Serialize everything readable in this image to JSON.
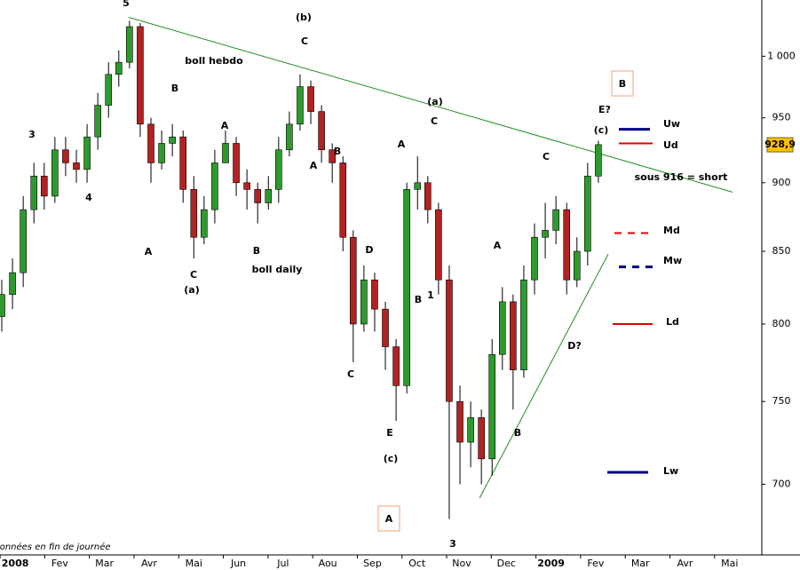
{
  "chart_data": {
    "type": "candlestick",
    "log": true,
    "xlim": [
      -0.34,
      16.72
    ],
    "ylim": [
      660,
      1048
    ],
    "xticks": [
      {
        "value": 0,
        "label": "2008"
      },
      {
        "value": 1,
        "label": "Fev"
      },
      {
        "value": 2,
        "label": "Mar"
      },
      {
        "value": 3,
        "label": "Avr"
      },
      {
        "value": 4,
        "label": "Mai"
      },
      {
        "value": 5,
        "label": "Jun"
      },
      {
        "value": 6,
        "label": "Jul"
      },
      {
        "value": 7,
        "label": "Aou"
      },
      {
        "value": 8,
        "label": "Sep"
      },
      {
        "value": 9,
        "label": "Oct"
      },
      {
        "value": 10,
        "label": "Nov"
      },
      {
        "value": 11,
        "label": "Dec"
      },
      {
        "value": 12,
        "label": "2009"
      },
      {
        "value": 13,
        "label": "Fev"
      },
      {
        "value": 14,
        "label": "Mar"
      },
      {
        "value": 15,
        "label": "Avr"
      },
      {
        "value": 16,
        "label": "Mai"
      }
    ],
    "yticks": [
      {
        "value": 1000,
        "label": "1 000"
      },
      950,
      900,
      850,
      800,
      750,
      700
    ],
    "x": [
      -0.3,
      -0.06,
      0.18,
      0.42,
      0.65,
      0.89,
      1.13,
      1.37,
      1.61,
      1.85,
      2.09,
      2.32,
      2.56,
      2.8,
      3.04,
      3.28,
      3.52,
      3.76,
      4.0,
      4.23,
      4.47,
      4.71,
      4.95,
      5.19,
      5.43,
      5.67,
      5.9,
      6.14,
      6.38,
      6.62,
      6.86,
      7.1,
      7.34,
      7.57,
      7.81,
      8.05,
      8.29,
      8.53,
      8.77,
      9.01,
      9.24,
      9.48,
      9.72,
      9.96,
      10.2,
      10.44,
      10.68,
      10.91,
      11.15,
      11.39,
      11.63,
      11.87,
      12.11,
      12.35,
      12.58,
      12.82,
      13.06
    ],
    "open": [
      805,
      820,
      835,
      880,
      905,
      890,
      925,
      915,
      910,
      935,
      960,
      985,
      995,
      1025,
      945,
      915,
      930,
      935,
      895,
      860,
      880,
      915,
      930,
      900,
      895,
      885,
      895,
      925,
      945,
      975,
      955,
      925,
      915,
      860,
      800,
      830,
      810,
      785,
      760,
      895,
      900,
      880,
      830,
      750,
      725,
      740,
      715,
      780,
      815,
      770,
      830,
      860,
      865,
      880,
      830,
      850,
      905
    ],
    "high": [
      830,
      845,
      890,
      915,
      915,
      935,
      935,
      925,
      945,
      970,
      995,
      1005,
      1030,
      1028,
      950,
      940,
      945,
      940,
      905,
      890,
      925,
      940,
      935,
      910,
      900,
      905,
      935,
      955,
      985,
      980,
      960,
      930,
      920,
      865,
      840,
      835,
      815,
      790,
      900,
      920,
      905,
      885,
      840,
      760,
      750,
      745,
      790,
      825,
      820,
      840,
      870,
      885,
      890,
      885,
      860,
      915,
      932
    ],
    "low": [
      795,
      810,
      825,
      870,
      880,
      885,
      905,
      900,
      900,
      925,
      950,
      975,
      990,
      935,
      900,
      910,
      920,
      885,
      845,
      855,
      870,
      915,
      890,
      880,
      870,
      880,
      885,
      920,
      940,
      945,
      915,
      900,
      850,
      775,
      795,
      795,
      770,
      738,
      755,
      880,
      870,
      820,
      680,
      700,
      710,
      700,
      705,
      770,
      745,
      765,
      820,
      845,
      855,
      820,
      825,
      840,
      900
    ],
    "close": [
      820,
      835,
      880,
      905,
      890,
      925,
      915,
      910,
      935,
      960,
      985,
      995,
      1025,
      945,
      915,
      930,
      935,
      895,
      860,
      880,
      915,
      930,
      900,
      895,
      885,
      895,
      925,
      945,
      975,
      955,
      925,
      915,
      860,
      800,
      830,
      810,
      785,
      760,
      895,
      900,
      880,
      830,
      750,
      725,
      740,
      715,
      780,
      815,
      770,
      830,
      860,
      865,
      880,
      830,
      850,
      905,
      929
    ],
    "up_color": "#2e9a2e",
    "down_color": "#b22222",
    "trendlines": [
      {
        "x": [
          2.54,
          16.06
        ],
        "y": [
          1033,
          893
        ],
        "color": "#1f8f1f"
      },
      {
        "x": [
          10.4,
          13.28
        ],
        "y": [
          692,
          848
        ],
        "color": "#1f8f1f"
      }
    ],
    "levels": [
      {
        "label": "Uw",
        "value": 941,
        "color": "#000080",
        "dashed": false
      },
      {
        "label": "Ud",
        "value": 930,
        "color": "#e00000",
        "dashed": false
      },
      {
        "label": "Md",
        "value": 863,
        "color": "#e00000",
        "dashed": true
      },
      {
        "label": "Mw",
        "value": 839,
        "color": "#000080",
        "dashed": true
      },
      {
        "label": "Ld",
        "value": 800,
        "color": "#e00000",
        "dashed": false
      },
      {
        "label": "Lw",
        "value": 707,
        "color": "#000080",
        "dashed": false
      }
    ],
    "last_price": {
      "value": 928.9,
      "label": "928,9",
      "color": "#ffc000"
    },
    "annotations": [
      {
        "text": "5",
        "color": "#000"
      },
      {
        "text": "(b)",
        "color": "#000"
      },
      {
        "text": "C",
        "color": "#000"
      },
      {
        "text": "boll hebdo",
        "color": "#e87fc8"
      },
      {
        "text": "B",
        "color": "#000"
      },
      {
        "text": "3",
        "color": "#000"
      },
      {
        "text": "4",
        "color": "#000"
      },
      {
        "text": "A",
        "color": "#000"
      },
      {
        "text": "A",
        "color": "#000"
      },
      {
        "text": "C",
        "color": "#000"
      },
      {
        "text": "(a)",
        "color": "#000"
      },
      {
        "text": "B",
        "color": "#000"
      },
      {
        "text": "boll daily",
        "color": "#2e9a2e"
      },
      {
        "text": "A",
        "color": "#000"
      },
      {
        "text": "B",
        "color": "#000"
      },
      {
        "text": "D",
        "color": "#000"
      },
      {
        "text": "C",
        "color": "#000"
      },
      {
        "text": "E",
        "color": "#000"
      },
      {
        "text": "(c)",
        "color": "#000"
      },
      {
        "text": "A",
        "color": "#000"
      },
      {
        "text": "C",
        "color": "#000"
      },
      {
        "text": "(a)",
        "color": "#000"
      },
      {
        "text": "B",
        "color": "#000"
      },
      {
        "text": "1",
        "color": "#000"
      },
      {
        "text": "3",
        "color": "#000"
      },
      {
        "text": "A",
        "color": "#000"
      },
      {
        "text": "B",
        "color": "#000"
      },
      {
        "text": "C",
        "color": "#000"
      },
      {
        "text": "D?",
        "color": "#000"
      },
      {
        "text": "E?",
        "color": "#000"
      },
      {
        "text": "(c)",
        "color": "#000"
      },
      {
        "text": "sous 916 = short",
        "color": "#000"
      }
    ],
    "boxed_labels": [
      {
        "text": "B",
        "color": "#f4a07a"
      },
      {
        "text": "A",
        "color": "#f4a07a"
      }
    ],
    "footnote": "Données en fin de journée"
  }
}
